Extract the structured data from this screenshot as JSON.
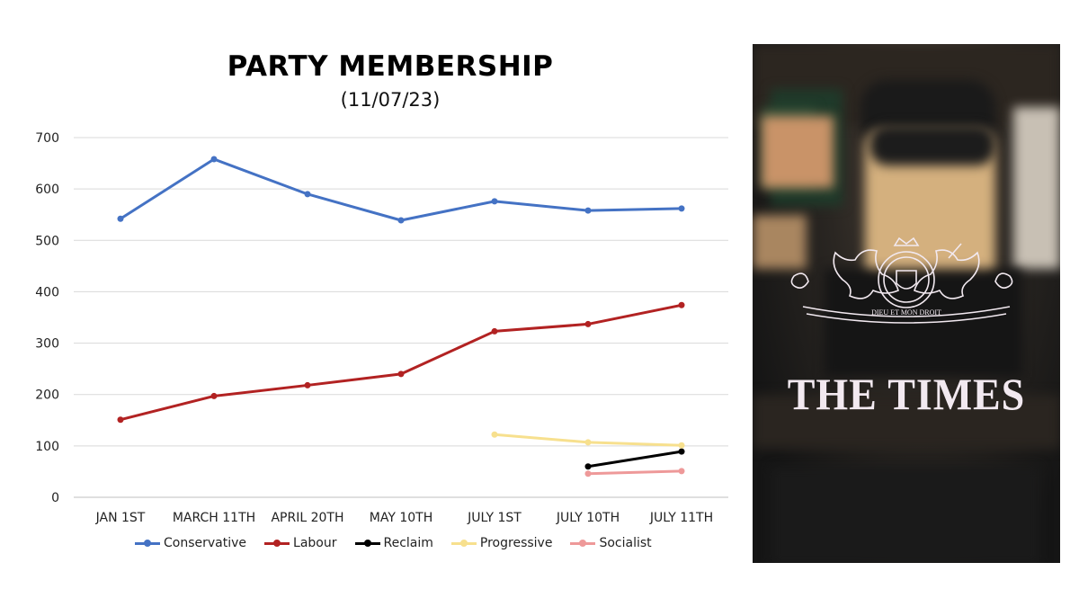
{
  "chart_data": {
    "type": "line",
    "title": "PARTY MEMBERSHIP",
    "subtitle": "(11/07/23)",
    "categories": [
      "JAN 1ST",
      "MARCH 11TH",
      "APRIL 20TH",
      "MAY 10TH",
      "JULY 1ST",
      "JULY 10TH",
      "JULY 11TH"
    ],
    "ylim": [
      0,
      700
    ],
    "yticks": [
      0,
      100,
      200,
      300,
      400,
      500,
      600,
      700
    ],
    "grid": true,
    "legend_position": "bottom",
    "series": [
      {
        "name": "Conservative",
        "color": "#4472c4",
        "values": [
          542,
          658,
          590,
          539,
          576,
          558,
          562
        ]
      },
      {
        "name": "Labour",
        "color": "#b22222",
        "values": [
          151,
          197,
          218,
          240,
          323,
          337,
          374
        ]
      },
      {
        "name": "Reclaim",
        "color": "#000000",
        "values": [
          null,
          null,
          null,
          null,
          null,
          60,
          89
        ]
      },
      {
        "name": "Progressive",
        "color": "#f7e08e",
        "values": [
          null,
          null,
          null,
          null,
          122,
          107,
          101
        ]
      },
      {
        "name": "Socialist",
        "color": "#ee9999",
        "values": [
          null,
          null,
          null,
          null,
          null,
          46,
          51
        ]
      }
    ]
  },
  "image_panel": {
    "logo_text": "THE TIMES",
    "crest_motto": "DIEU ET MON DROIT"
  }
}
